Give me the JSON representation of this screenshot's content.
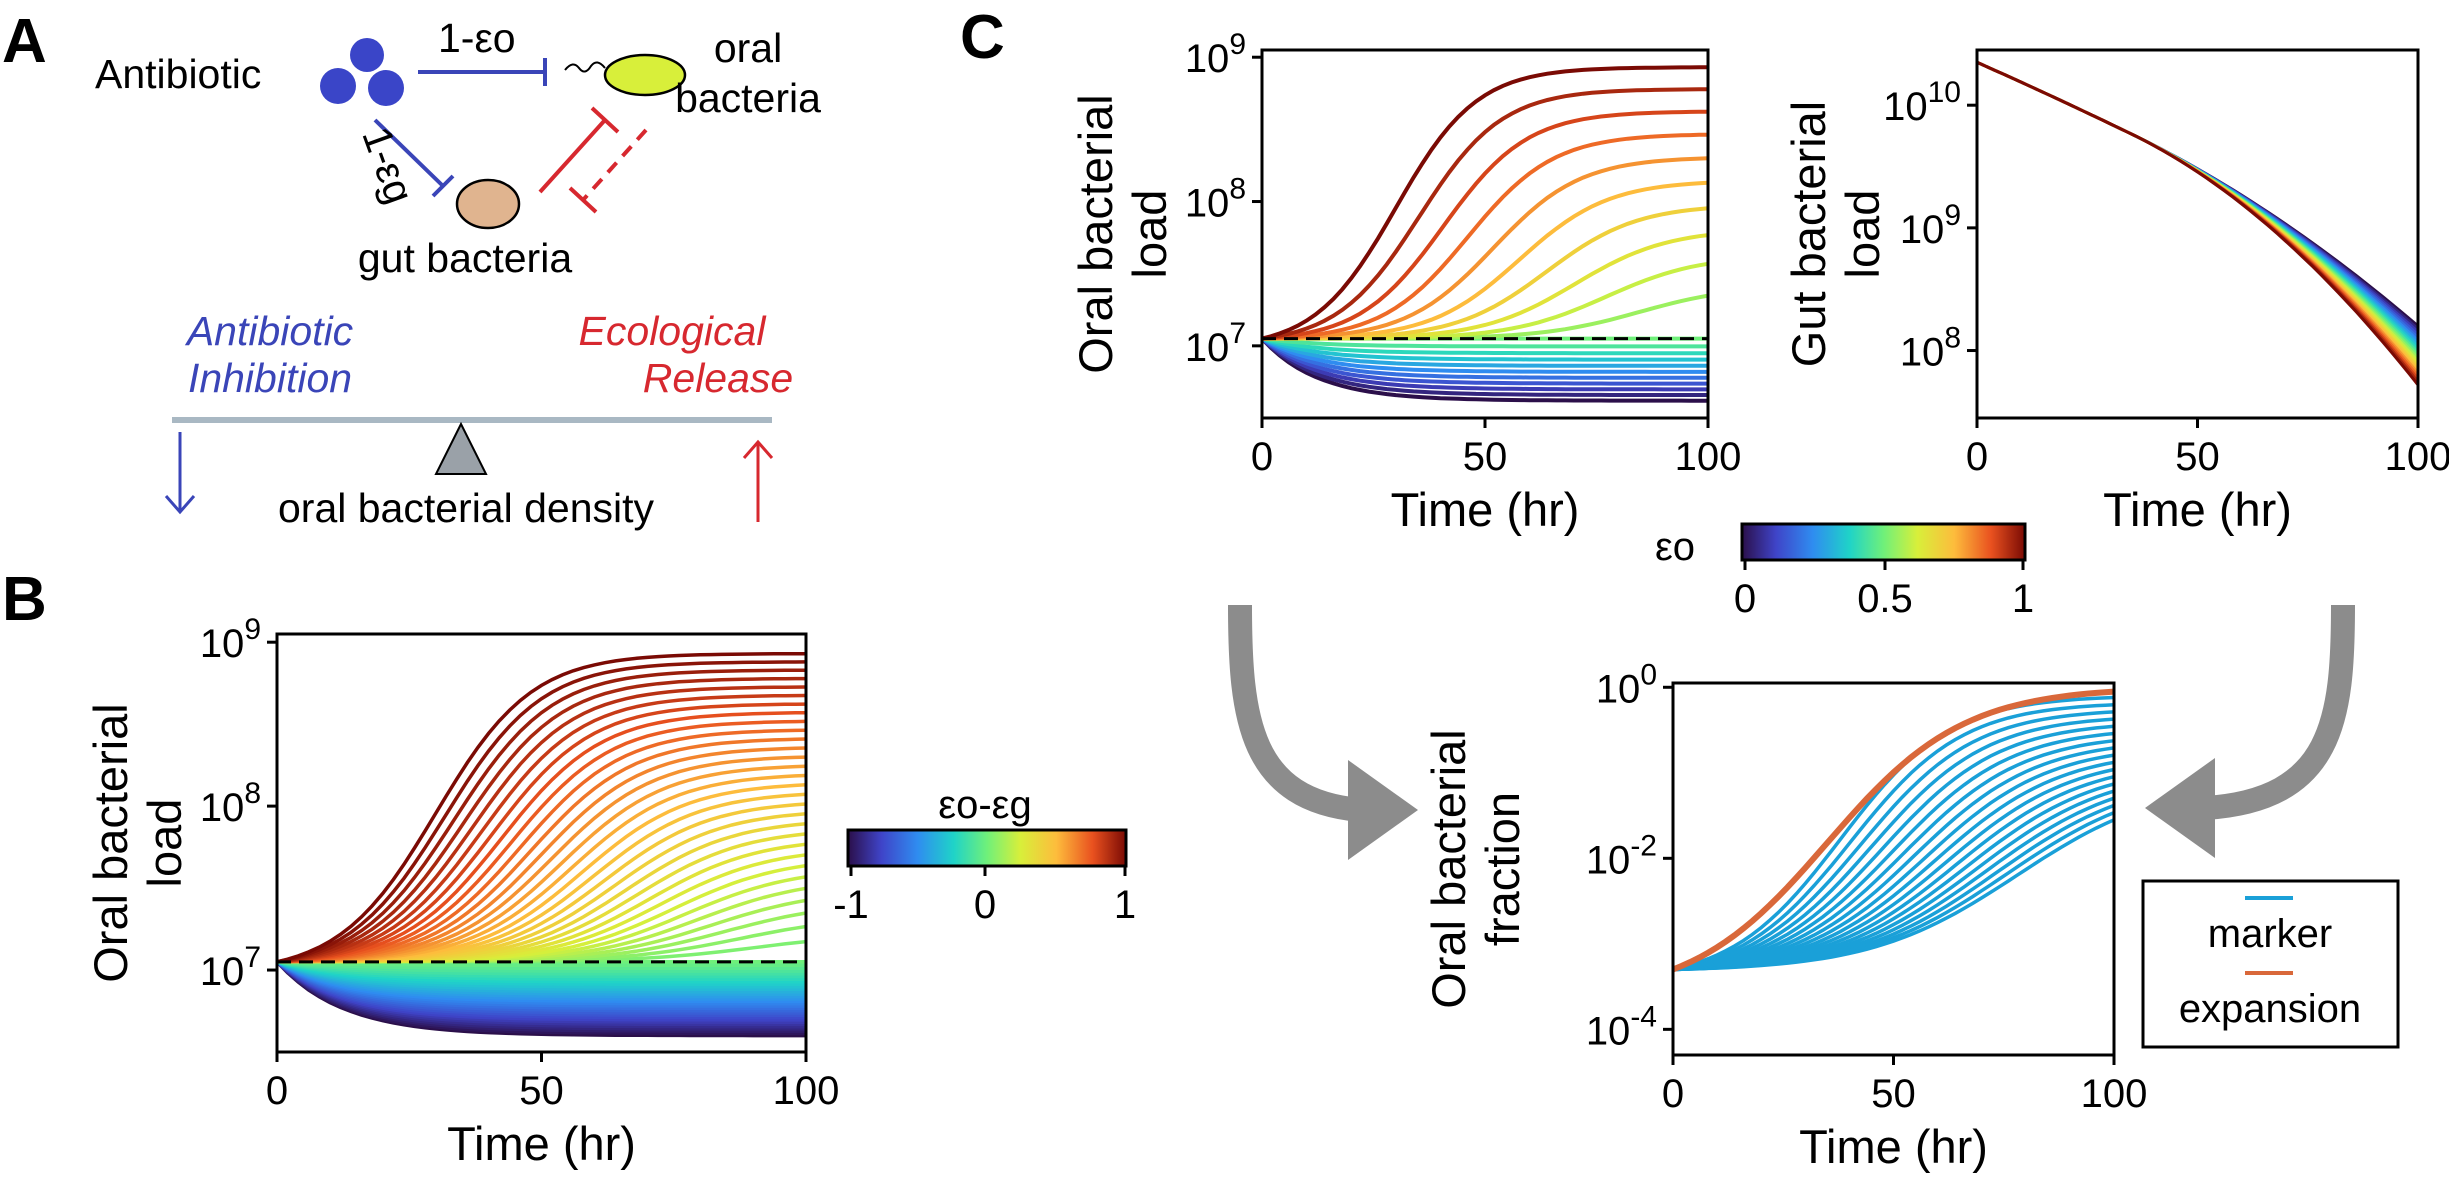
{
  "panels": {
    "a": "A",
    "b": "B",
    "c": "C"
  },
  "schematic": {
    "antibiotic_label": "Antibiotic",
    "oral_label_1": "oral",
    "oral_label_2": "bacteria",
    "gut_label": "gut bacteria",
    "edge_oral": "1-εo",
    "edge_gut": "1-εg",
    "inhibition_1": "Antibiotic",
    "inhibition_2": "Inhibition",
    "release_1": "Ecological",
    "release_2": "Release",
    "density_label": "oral bacterial density",
    "colors": {
      "inhibition": "#3a45b8",
      "release": "#d7282f",
      "oral_cell": "#d8ef3a",
      "gut_cell": "#e0b48f",
      "beam": "#a9b8c3",
      "fulcrum": "#9aa1a8"
    }
  },
  "arrows": {
    "color": "#8c8c8c"
  },
  "chart_data": [
    {
      "id": "B",
      "type": "line",
      "ylabel_1": "Oral bacterial",
      "ylabel_2": "load",
      "xlabel": "Time (hr)",
      "xlim": [
        0,
        100
      ],
      "ylim_log10": [
        6.5,
        9.05
      ],
      "xticks": [
        "0",
        "50",
        "100"
      ],
      "yticks": [
        {
          "base": "10",
          "exp": "7"
        },
        {
          "base": "10",
          "exp": "8"
        },
        {
          "base": "10",
          "exp": "9"
        }
      ],
      "color_param": "εo-εg",
      "color_range": [
        -1,
        1
      ],
      "n_series": 61,
      "series_final_log10": {
        "min": 6.6,
        "max": 8.93
      },
      "reference_line_log10": 7.05,
      "start_log10": 7.05,
      "scale": "log"
    },
    {
      "id": "C-oral",
      "type": "line",
      "ylabel_1": "Oral bacterial",
      "ylabel_2": "load",
      "xlabel": "Time (hr)",
      "xlim": [
        0,
        100
      ],
      "ylim_log10": [
        6.5,
        9.05
      ],
      "xticks": [
        "0",
        "50",
        "100"
      ],
      "yticks": [
        {
          "base": "10",
          "exp": "7"
        },
        {
          "base": "10",
          "exp": "8"
        },
        {
          "base": "10",
          "exp": "9"
        }
      ],
      "color_param": "εo",
      "color_range": [
        0,
        1
      ],
      "n_series": 21,
      "series_final_log10": {
        "min": 6.62,
        "max": 8.93
      },
      "reference_line_log10": 7.05,
      "start_log10": 7.05,
      "scale": "log"
    },
    {
      "id": "C-gut",
      "type": "line",
      "ylabel_1": "Gut bacterial",
      "ylabel_2": "load",
      "xlabel": "Time (hr)",
      "xlim": [
        0,
        100
      ],
      "ylim_log10": [
        7.45,
        10.45
      ],
      "xticks": [
        "0",
        "50",
        "100"
      ],
      "yticks": [
        {
          "base": "10",
          "exp": "8"
        },
        {
          "base": "10",
          "exp": "9"
        },
        {
          "base": "10",
          "exp": "10"
        }
      ],
      "color_param": "εo",
      "n_series": 21,
      "start_log10": 10.35,
      "final_log10": {
        "min": 7.72,
        "max": 8.2
      },
      "scale": "log"
    },
    {
      "id": "C-fraction",
      "type": "line",
      "ylabel_1": "Oral bacterial",
      "ylabel_2": "fraction",
      "xlabel": "Time (hr)",
      "xlim": [
        0,
        100
      ],
      "ylim_log10": [
        -4.3,
        0.05
      ],
      "xticks": [
        "0",
        "50",
        "100"
      ],
      "yticks": [
        {
          "base": "10",
          "exp": "-4"
        },
        {
          "base": "10",
          "exp": "-2"
        },
        {
          "base": "10",
          "exp": "0"
        }
      ],
      "start_log10": -3.3,
      "legend": [
        {
          "name": "marker",
          "color": "#1aa0d8"
        },
        {
          "name": "expansion",
          "color": "#d9683a"
        }
      ],
      "marker_series_final_log10": {
        "min": -1.55,
        "max": -0.12,
        "count": 18
      },
      "expansion_series_final_log10": -0.05,
      "scale": "log"
    }
  ],
  "colorbars": {
    "b": {
      "label": "εo-εg",
      "ticks": [
        "-1",
        "0",
        "1"
      ]
    },
    "c": {
      "label": "εo",
      "ticks": [
        "0",
        "0.5",
        "1"
      ]
    }
  }
}
